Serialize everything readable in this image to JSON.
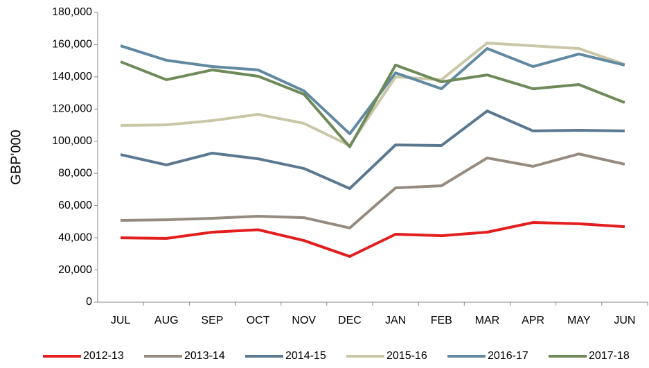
{
  "chart_data": {
    "type": "line",
    "y_label": "GBP'000",
    "categories": [
      "JUL",
      "AUG",
      "SEP",
      "OCT",
      "NOV",
      "DEC",
      "JAN",
      "FEB",
      "MAR",
      "APR",
      "MAY",
      "JUN"
    ],
    "series": [
      {
        "name": "2012-13",
        "color": "#e31e1e",
        "values": [
          40000,
          39600,
          43500,
          45000,
          38300,
          28400,
          42200,
          41300,
          43500,
          49500,
          48700,
          46900
        ]
      },
      {
        "name": "2013-14",
        "color": "#968b80",
        "values": [
          50800,
          51200,
          52100,
          53400,
          52500,
          46100,
          71000,
          72300,
          89600,
          84400,
          92100,
          85700
        ]
      },
      {
        "name": "2014-15",
        "color": "#5b7891",
        "values": [
          91700,
          85300,
          92600,
          89100,
          83100,
          70600,
          97700,
          97300,
          118800,
          106400,
          106800,
          106400
        ]
      },
      {
        "name": "2015-16",
        "color": "#c9c7a7",
        "values": [
          109800,
          110200,
          112800,
          116700,
          111100,
          97300,
          140000,
          138200,
          161000,
          159300,
          157600,
          147700
        ]
      },
      {
        "name": "2016-17",
        "color": "#6189a1",
        "values": [
          159300,
          150300,
          146400,
          144300,
          131300,
          104600,
          142500,
          132600,
          157600,
          146400,
          154200,
          147300
        ]
      },
      {
        "name": "2017-18",
        "color": "#6e8a59",
        "values": [
          149400,
          138200,
          144300,
          140400,
          129200,
          96500,
          147300,
          136900,
          141200,
          132600,
          135200,
          124000
        ]
      }
    ],
    "ylim": [
      0,
      180000
    ],
    "yticks": [
      0,
      {
        "value": 20000,
        "label": "20,000"
      },
      {
        "value": 40000,
        "label": "40,000"
      },
      {
        "value": 60000,
        "label": "60,000"
      },
      {
        "value": 80000,
        "label": "80,000"
      },
      {
        "value": 100000,
        "label": "100,000"
      },
      {
        "value": 120000,
        "label": "120,000"
      },
      {
        "value": 140000,
        "label": "140,000"
      },
      {
        "value": 160000,
        "label": "160,000"
      },
      {
        "value": 180000,
        "label": "180,000"
      }
    ],
    "grid": false
  }
}
